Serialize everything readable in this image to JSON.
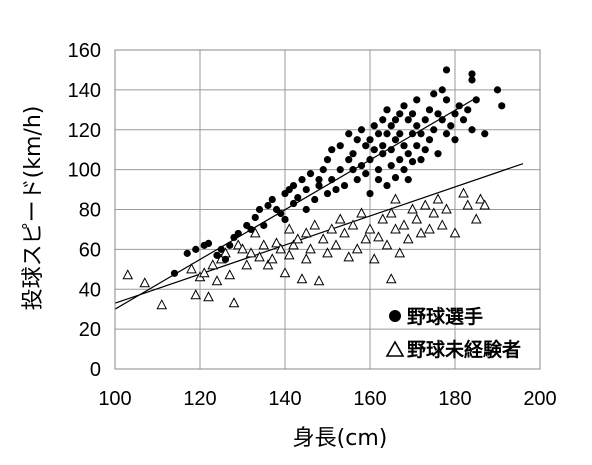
{
  "chart_data": {
    "type": "scatter",
    "xlabel": "身長(cm)",
    "ylabel": "投球スピード(km/h)",
    "xlim": [
      100,
      200
    ],
    "ylim": [
      0,
      160
    ],
    "xticks": [
      "100",
      "120",
      "140",
      "160",
      "180",
      "200"
    ],
    "yticks": [
      "0",
      "20",
      "40",
      "60",
      "80",
      "100",
      "120",
      "140",
      "160"
    ],
    "grid": true,
    "legend_position": "bottom-right",
    "series": [
      {
        "name": "野球選手",
        "marker": "filled-circle",
        "color": "#000000",
        "x": [
          114,
          117,
          119,
          121,
          122,
          124,
          125,
          126,
          127,
          128,
          129,
          131,
          132,
          133,
          134,
          135,
          136,
          137,
          138,
          139,
          140,
          140,
          141,
          142,
          142,
          143,
          144,
          145,
          145,
          146,
          147,
          148,
          148,
          149,
          150,
          150,
          151,
          151,
          152,
          153,
          153,
          154,
          155,
          155,
          156,
          156,
          157,
          157,
          158,
          158,
          159,
          159,
          160,
          160,
          160,
          161,
          161,
          162,
          162,
          162,
          163,
          163,
          163,
          164,
          164,
          164,
          165,
          165,
          165,
          166,
          166,
          166,
          167,
          167,
          167,
          168,
          168,
          168,
          169,
          169,
          169,
          170,
          170,
          170,
          171,
          171,
          171,
          172,
          172,
          173,
          173,
          174,
          174,
          175,
          175,
          176,
          176,
          177,
          177,
          178,
          178,
          179,
          180,
          180,
          181,
          182,
          183,
          184,
          185,
          187,
          190,
          191,
          178,
          184,
          184
        ],
        "y": [
          48,
          58,
          60,
          62,
          63,
          57,
          60,
          55,
          62,
          66,
          68,
          72,
          70,
          76,
          80,
          72,
          82,
          85,
          80,
          78,
          75,
          88,
          90,
          83,
          92,
          86,
          95,
          80,
          90,
          98,
          85,
          92,
          95,
          100,
          88,
          105,
          95,
          110,
          90,
          100,
          112,
          92,
          105,
          118,
          100,
          108,
          95,
          115,
          102,
          120,
          98,
          112,
          105,
          115,
          88,
          110,
          122,
          100,
          118,
          95,
          125,
          108,
          112,
          92,
          118,
          130,
          102,
          122,
          110,
          96,
          125,
          115,
          105,
          118,
          128,
          100,
          112,
          132,
          108,
          125,
          95,
          118,
          104,
          128,
          112,
          122,
          135,
          105,
          118,
          125,
          110,
          130,
          115,
          120,
          138,
          108,
          128,
          125,
          140,
          118,
          135,
          122,
          128,
          115,
          132,
          125,
          130,
          120,
          135,
          118,
          140,
          132,
          150,
          148,
          145
        ]
      },
      {
        "name": "野球未経験者",
        "marker": "open-triangle",
        "color": "#000000",
        "x": [
          103,
          107,
          111,
          118,
          119,
          120,
          121,
          122,
          123,
          124,
          125,
          126,
          127,
          128,
          129,
          130,
          131,
          132,
          133,
          134,
          135,
          136,
          137,
          138,
          139,
          140,
          141,
          141,
          142,
          143,
          144,
          145,
          145,
          146,
          147,
          148,
          149,
          150,
          151,
          152,
          153,
          154,
          155,
          156,
          157,
          158,
          159,
          160,
          161,
          162,
          163,
          164,
          165,
          165,
          166,
          166,
          167,
          168,
          169,
          170,
          171,
          172,
          173,
          174,
          175,
          176,
          177,
          178,
          180,
          182,
          183,
          185,
          186,
          187
        ],
        "y": [
          47,
          43,
          32,
          50,
          37,
          46,
          48,
          36,
          52,
          44,
          55,
          58,
          47,
          33,
          62,
          60,
          52,
          58,
          68,
          56,
          62,
          52,
          55,
          63,
          60,
          48,
          70,
          57,
          62,
          65,
          45,
          68,
          55,
          60,
          72,
          44,
          65,
          58,
          70,
          62,
          75,
          68,
          56,
          72,
          60,
          78,
          65,
          70,
          55,
          66,
          75,
          62,
          78,
          45,
          70,
          85,
          58,
          72,
          65,
          80,
          75,
          68,
          82,
          70,
          78,
          85,
          72,
          80,
          68,
          88,
          82,
          75,
          85,
          82
        ]
      }
    ],
    "trendlines": [
      {
        "series": "野球選手",
        "x": [
          100,
          185
        ],
        "y": [
          30,
          136
        ]
      },
      {
        "series": "野球未経験者",
        "x": [
          100,
          196
        ],
        "y": [
          33,
          103
        ]
      }
    ]
  }
}
